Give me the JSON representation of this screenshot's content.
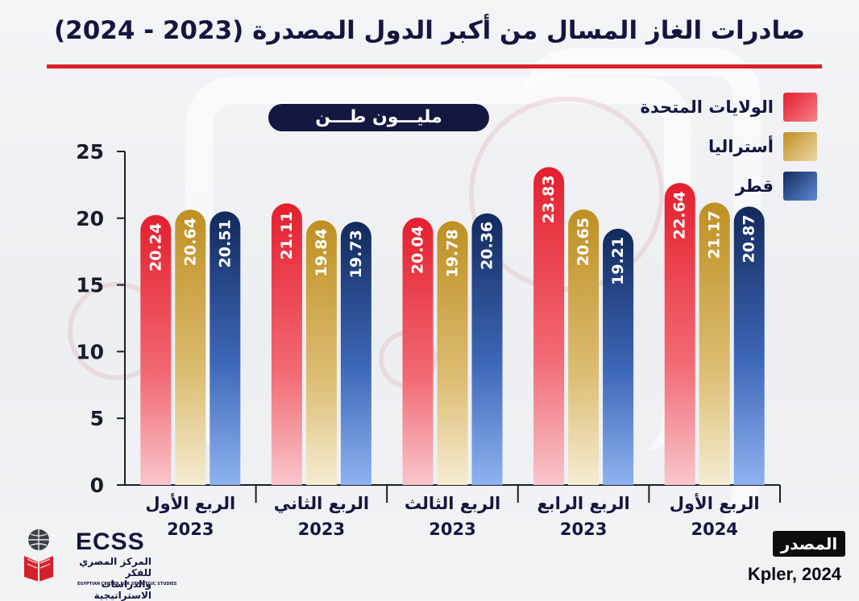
{
  "title": "صادرات الغاز المسال من أكبر الدول المصدرة (2023 - 2024)",
  "unit_label": "مليـــون طـــن",
  "colors": {
    "united_states": "#e8343a",
    "australia": "#c9a23e",
    "qatar": "#1e3f88",
    "title_rule": "#dd1f2a",
    "navy": "#14173f"
  },
  "legend": [
    {
      "label": "الولايات المتحدة",
      "color_key": "united_states"
    },
    {
      "label": "أستراليا",
      "color_key": "australia"
    },
    {
      "label": "قطر",
      "color_key": "qatar"
    }
  ],
  "source": {
    "label": "المصدر",
    "text": "Kpler, 2024"
  },
  "logo": {
    "short": "ECSS",
    "arabic": "المركز المصري للفكر والدراسات الاستراتيجية",
    "english": "EGYPTIAN CENTER FOR STRATEGIC STUDIES",
    "icon": "globe-book-logo-icon"
  },
  "chart_data": {
    "type": "bar",
    "ylim": [
      0,
      25
    ],
    "yticks": [
      0,
      5,
      10,
      15,
      20,
      25
    ],
    "categories": [
      {
        "quarter": "الربع الأول",
        "year": "2023"
      },
      {
        "quarter": "الربع الثاني",
        "year": "2023"
      },
      {
        "quarter": "الربع الثالث",
        "year": "2023"
      },
      {
        "quarter": "الربع الرابع",
        "year": "2023"
      },
      {
        "quarter": "الربع الأول",
        "year": "2024"
      }
    ],
    "series": [
      {
        "name": "الولايات المتحدة",
        "color_key": "united_states",
        "values": [
          20.24,
          21.11,
          20.04,
          23.83,
          22.64
        ]
      },
      {
        "name": "أستراليا",
        "color_key": "australia",
        "values": [
          20.64,
          19.84,
          19.78,
          20.65,
          21.17
        ]
      },
      {
        "name": "قطر",
        "color_key": "qatar",
        "values": [
          20.51,
          19.73,
          20.36,
          19.21,
          20.87
        ]
      }
    ]
  }
}
